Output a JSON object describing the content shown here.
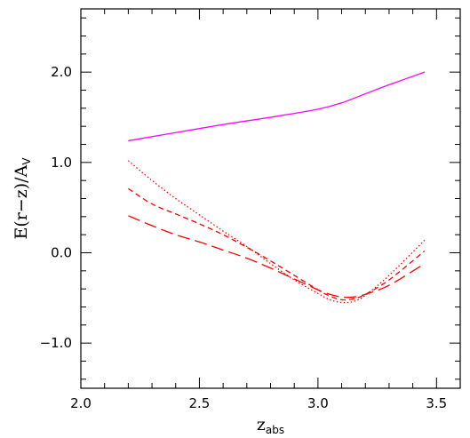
{
  "chart_data": {
    "type": "line",
    "xlabel": {
      "main": "z",
      "sub": "abs"
    },
    "ylabel": {
      "pre": "E(r−z)/A",
      "sub": "V"
    },
    "xlim": [
      2.0,
      3.6
    ],
    "ylim": [
      -1.5,
      2.7
    ],
    "x_ticks": [
      {
        "value": 2.0,
        "label": "2.0"
      },
      {
        "value": 2.5,
        "label": "2.5"
      },
      {
        "value": 3.0,
        "label": "3.0"
      },
      {
        "value": 3.5,
        "label": "3.5"
      }
    ],
    "y_ticks": [
      {
        "value": -1.0,
        "label": "−1.0"
      },
      {
        "value": 0.0,
        "label": "0.0"
      },
      {
        "value": 1.0,
        "label": "1.0"
      },
      {
        "value": 2.0,
        "label": "2.0"
      }
    ],
    "x_minor_step": 0.1,
    "y_minor_step": 0.2,
    "grid": false,
    "series": [
      {
        "style": "solid",
        "color": "#ff00ff",
        "x": [
          2.2,
          2.4,
          2.6,
          2.8,
          3.0,
          3.1,
          3.2,
          3.3,
          3.45
        ],
        "y": [
          1.24,
          1.33,
          1.42,
          1.5,
          1.59,
          1.66,
          1.76,
          1.86,
          2.0
        ]
      },
      {
        "style": "dotted",
        "color": "#ff0000",
        "x": [
          2.2,
          2.3,
          2.4,
          2.5,
          2.6,
          2.7,
          2.8,
          2.9,
          3.0,
          3.05,
          3.1,
          3.15,
          3.2,
          3.3,
          3.45
        ],
        "y": [
          1.02,
          0.8,
          0.6,
          0.42,
          0.24,
          0.07,
          -0.12,
          -0.3,
          -0.45,
          -0.52,
          -0.55,
          -0.54,
          -0.47,
          -0.25,
          0.14
        ]
      },
      {
        "style": "short-dash",
        "color": "#ff0000",
        "x": [
          2.2,
          2.3,
          2.4,
          2.5,
          2.6,
          2.7,
          2.8,
          2.9,
          3.0,
          3.05,
          3.1,
          3.15,
          3.2,
          3.3,
          3.45
        ],
        "y": [
          0.71,
          0.54,
          0.43,
          0.32,
          0.2,
          0.06,
          -0.09,
          -0.25,
          -0.41,
          -0.48,
          -0.52,
          -0.51,
          -0.46,
          -0.3,
          0.02
        ]
      },
      {
        "style": "long-dash",
        "color": "#ff0000",
        "x": [
          2.2,
          2.3,
          2.4,
          2.5,
          2.6,
          2.7,
          2.8,
          2.9,
          3.0,
          3.05,
          3.1,
          3.15,
          3.2,
          3.3,
          3.45
        ],
        "y": [
          0.41,
          0.3,
          0.2,
          0.12,
          0.03,
          -0.06,
          -0.17,
          -0.29,
          -0.41,
          -0.46,
          -0.49,
          -0.49,
          -0.46,
          -0.36,
          -0.12
        ]
      }
    ]
  }
}
